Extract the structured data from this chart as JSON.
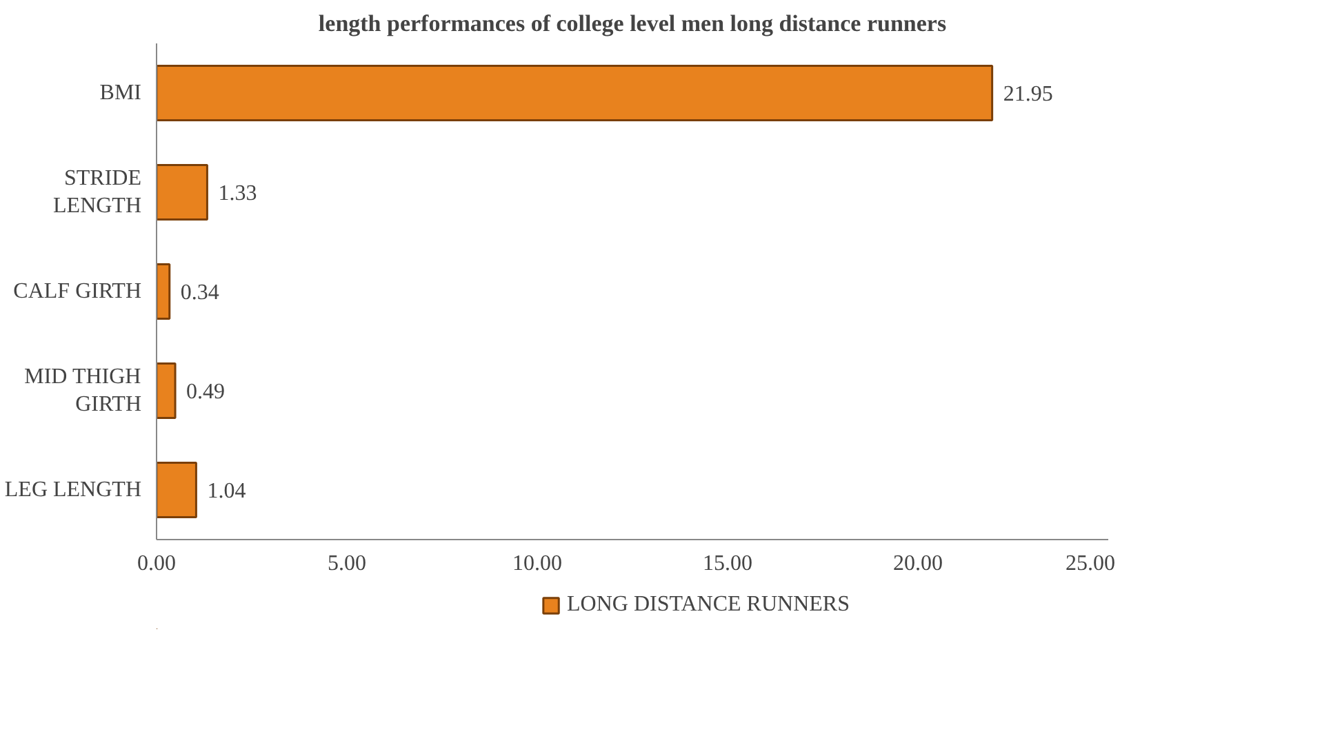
{
  "chart_data": {
    "type": "bar",
    "orientation": "horizontal",
    "title": "length performances of college level men long distance runners",
    "categories": [
      "BMI",
      "STRIDE LENGTH",
      "CALF GIRTH",
      "MID THIGH GIRTH",
      "LEG LENGTH"
    ],
    "series": [
      {
        "name": "LONG DISTANCE RUNNERS",
        "color": "#e8821e",
        "values": [
          21.95,
          1.33,
          0.34,
          0.49,
          1.04
        ]
      }
    ],
    "data_labels": true,
    "xlim": [
      0,
      25
    ],
    "xticks": [
      {
        "value": 0,
        "label": "0.00"
      },
      {
        "value": 5,
        "label": "5.00"
      },
      {
        "value": 10,
        "label": "10.00"
      },
      {
        "value": 15,
        "label": "15.00"
      },
      {
        "value": 20,
        "label": "20.00"
      },
      {
        "value": 25,
        "label": "25.00"
      }
    ],
    "grid": false,
    "legend": "bottom"
  }
}
